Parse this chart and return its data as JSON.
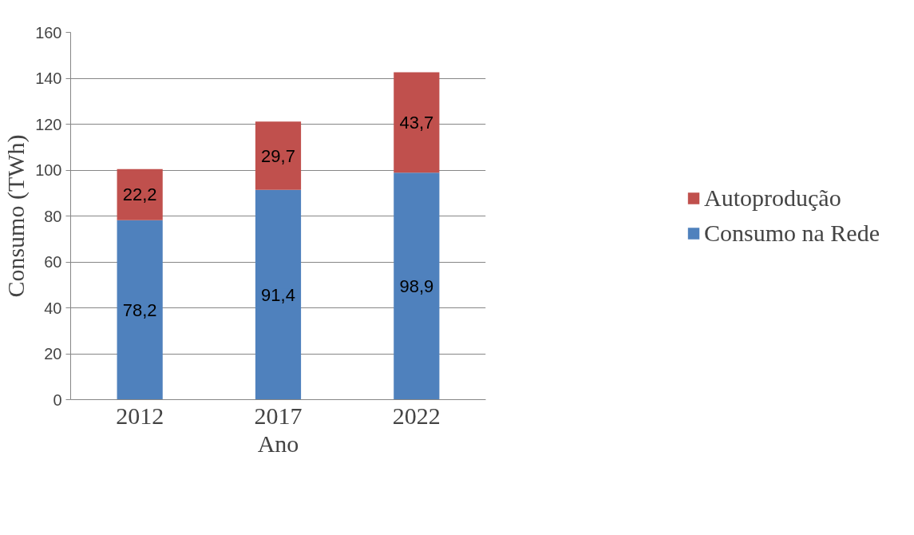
{
  "chart_data": {
    "type": "bar",
    "stacked": true,
    "xlabel": "Ano",
    "ylabel": "Consumo (TWh)",
    "categories": [
      "2012",
      "2017",
      "2022"
    ],
    "series": [
      {
        "name": "Consumo na Rede",
        "color": "#4f81bd",
        "values": [
          78.2,
          91.4,
          98.9
        ],
        "value_labels": [
          "78,2",
          "91,4",
          "98,9"
        ]
      },
      {
        "name": "Autoprodução",
        "color": "#c0504d",
        "values": [
          22.2,
          29.7,
          43.7
        ],
        "value_labels": [
          "22,2",
          "29,7",
          "43,7"
        ]
      }
    ],
    "ylim": [
      0,
      160
    ],
    "yticks": [
      0,
      20,
      40,
      60,
      80,
      100,
      120,
      140,
      160
    ],
    "grid": "y",
    "legend": "right"
  }
}
